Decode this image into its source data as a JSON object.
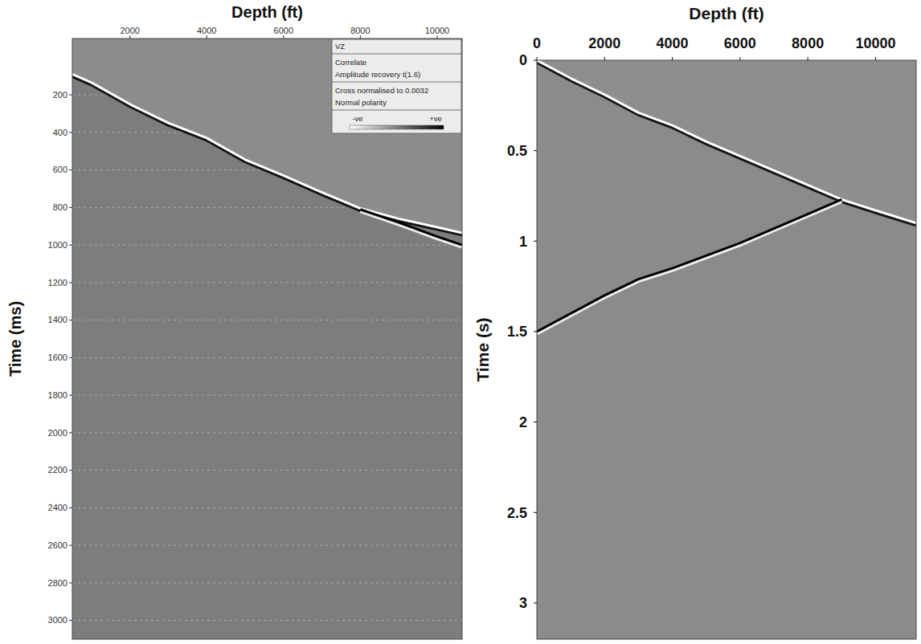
{
  "chart_data": [
    {
      "type": "line",
      "x_label": "Depth (ft)",
      "y_label": "Time (ms)",
      "xlim": [
        500,
        10650
      ],
      "ylim": [
        -100,
        3100
      ],
      "xticks": [
        2000,
        4000,
        6000,
        8000,
        10000
      ],
      "yticks": [
        200,
        400,
        600,
        800,
        1000,
        1200,
        1400,
        1600,
        1800,
        2000,
        2200,
        2400,
        2600,
        2800,
        3000
      ],
      "grid": true,
      "annotations": [
        "VZ",
        "Correlate",
        "Amplitude recovery  t(1.6)",
        "Cross normalised to 0.0032",
        "Normal polarity",
        "-ve",
        "+ve"
      ],
      "series": [
        {
          "x": [
            500,
            1000,
            2000,
            3000,
            4000,
            5000,
            6000,
            7000,
            8000,
            9000,
            10000,
            10650
          ],
          "values": [
            90,
            135,
            250,
            350,
            430,
            545,
            630,
            720,
            805,
            860,
            905,
            935
          ],
          "color": "#ffffff"
        },
        {
          "x": [
            8000,
            9000,
            10000,
            10650
          ],
          "values": [
            810,
            880,
            955,
            1000
          ],
          "color": "#000000"
        }
      ]
    },
    {
      "type": "line",
      "x_label": "Depth (ft)",
      "y_label": "Time (s)",
      "xlim": [
        0,
        11200
      ],
      "ylim": [
        0,
        3.2
      ],
      "xticks": [
        0,
        2000,
        4000,
        6000,
        8000,
        10000
      ],
      "yticks": [
        0,
        0.5,
        1,
        1.5,
        2,
        2.5,
        3
      ],
      "grid": false,
      "series": [
        {
          "x": [
            0,
            1000,
            2000,
            3000,
            4000,
            5000,
            6000,
            7000,
            8000,
            9000,
            10000,
            11200
          ],
          "values": [
            0,
            0.1,
            0.19,
            0.29,
            0.36,
            0.45,
            0.53,
            0.61,
            0.69,
            0.77,
            0.83,
            0.9
          ],
          "color": "#ffffff"
        },
        {
          "x": [
            0,
            2000,
            3000,
            4000,
            5000,
            6000,
            7000,
            8000,
            9000
          ],
          "values": [
            1.5,
            1.3,
            1.21,
            1.15,
            1.08,
            1.01,
            0.93,
            0.85,
            0.77
          ],
          "color": "#000000"
        }
      ]
    }
  ]
}
